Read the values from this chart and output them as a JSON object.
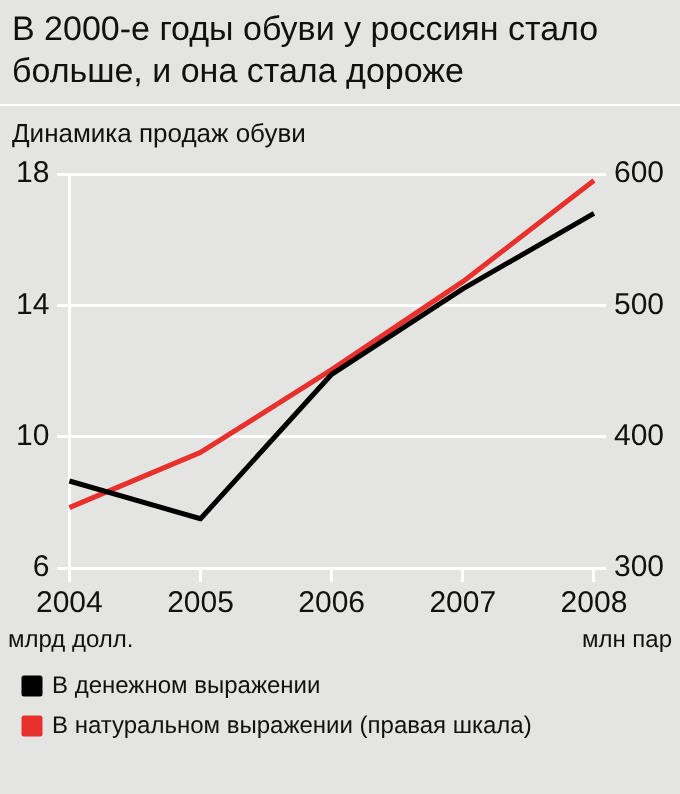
{
  "chart_data": {
    "type": "line",
    "title": "В 2000-е годы обуви у россиян стало больше, и она стала дороже",
    "subtitle": "Динамика продаж обуви",
    "ylabel": "млрд долл.",
    "y2label": "млн пар",
    "categories": [
      "2004",
      "2005",
      "2006",
      "2007",
      "2008"
    ],
    "series": [
      {
        "name": "В денежном выражении",
        "color": "#000000",
        "values": [
          8.65,
          7.5,
          11.9,
          14.5,
          16.8
        ]
      },
      {
        "name": "В натуральном выражении (правая шкала)",
        "color": "#e8302c",
        "values": [
          346,
          388,
          451,
          518,
          595
        ],
        "axis": "y2"
      }
    ],
    "ylim": [
      6,
      18
    ],
    "yticks": [
      6,
      10,
      14,
      18
    ],
    "y2lim": [
      300,
      600
    ],
    "y2ticks": [
      300,
      400,
      500,
      600
    ],
    "grid": "y",
    "legend": "bottom",
    "marker": "none",
    "line_style": "solid"
  }
}
